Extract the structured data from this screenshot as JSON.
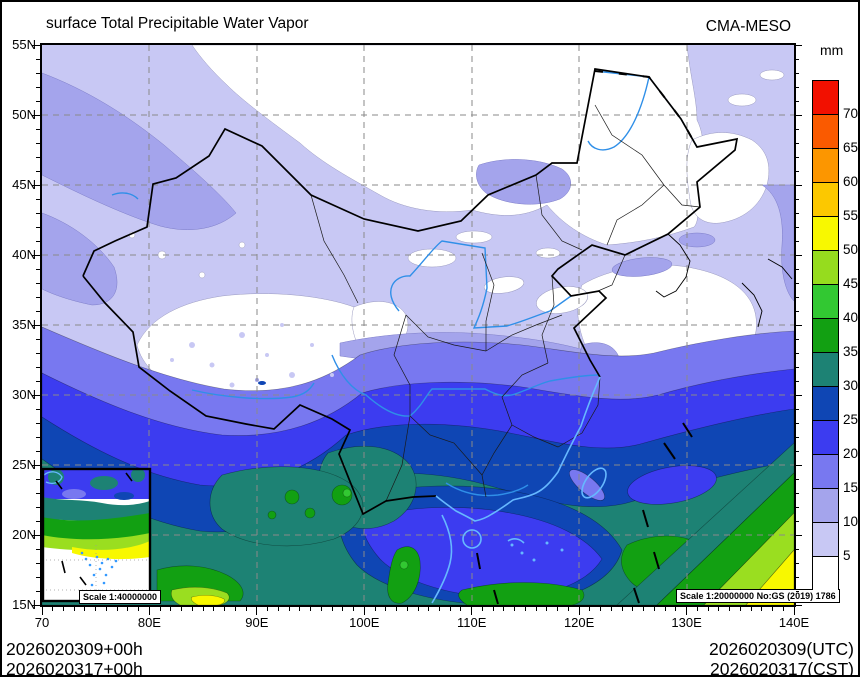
{
  "header": {
    "title": "surface Total Precipitable Water Vapor",
    "model": "CMA-MESO"
  },
  "colorbar": {
    "unit": "mm",
    "tick_labels": [
      "70",
      "65",
      "60",
      "55",
      "50",
      "45",
      "40",
      "35",
      "30",
      "25",
      "20",
      "15",
      "10",
      "5"
    ],
    "colors_top_to_bottom": [
      "#f21000",
      "#fa5a00",
      "#fc9600",
      "#fcc800",
      "#f8f800",
      "#96dc1e",
      "#32c832",
      "#12a012",
      "#1d8274",
      "#0f46b4",
      "#3c3cf0",
      "#7878f0",
      "#a4a4ec",
      "#c8c8f4",
      "#ffffff"
    ]
  },
  "axes": {
    "lat_labels": [
      "55N",
      "50N",
      "45N",
      "40N",
      "35N",
      "30N",
      "25N",
      "20N",
      "15N"
    ],
    "lon_labels": [
      "70",
      "80E",
      "90E",
      "100E",
      "110E",
      "120E",
      "130E",
      "140E"
    ]
  },
  "footer": {
    "left_line1": "2026020309+00h",
    "left_line2": "2026020317+00h",
    "right_line1": "2026020309(UTC)",
    "right_line2": "2026020317(CST)"
  },
  "map": {
    "main_scale_note": "Scale 1:20000000 No:GS (2019) 1786",
    "inset_scale_note": "Scale 1:40000000"
  },
  "chart_data": {
    "type": "heatmap",
    "subtype": "filled-contour-geographic-map",
    "title": "surface Total Precipitable Water Vapor",
    "model": "CMA-MESO",
    "unit": "mm",
    "init_time": "2026020309 UTC / 2026020317 CST",
    "forecast_hour": "+00h",
    "lon_range": [
      70,
      140
    ],
    "lat_range": [
      15,
      55
    ],
    "contour_levels_mm": [
      5,
      10,
      15,
      20,
      25,
      30,
      35,
      40,
      45,
      50,
      55,
      60,
      65,
      70
    ],
    "level_colors": {
      "lt5": "#ffffff",
      "5-10": "#c8c8f4",
      "10-15": "#a4a4ec",
      "15-20": "#7878f0",
      "20-25": "#3c3cf0",
      "25-30": "#0f46b4",
      "30-35": "#1d8274",
      "35-40": "#12a012",
      "40-45": "#32c832",
      "45-50": "#96dc1e",
      "50-55": "#f8f800",
      "55-60": "#fcc800",
      "60-65": "#fc9600",
      "65-70": "#fa5a00",
      "gt70": "#f21000"
    },
    "pattern_summary": "Dry (<5mm) over Mongolia, NE China, Tibetan Plateau and Yellow Sea; 5-15mm over Xinjiang and north China; values increase southward: 15-30mm central China, 30-40mm far south and South China Sea, 45-70+mm toward tropical southeast corner",
    "grid": "dashed gray graticule every 10 deg lon / 5 deg lat",
    "legend_position": "right vertical colorbar"
  }
}
